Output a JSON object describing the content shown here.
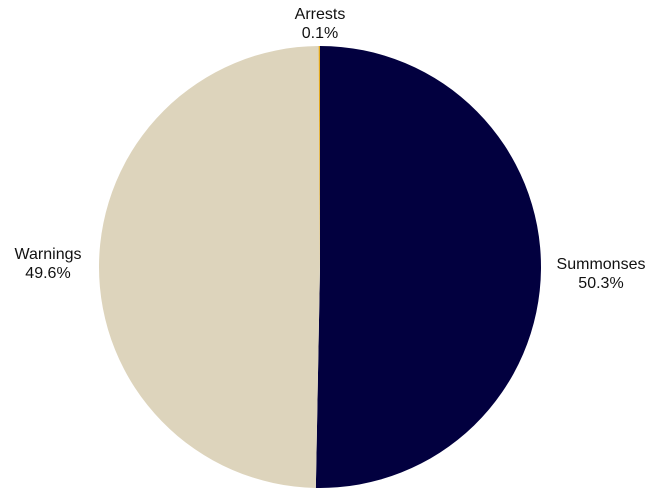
{
  "chart_data": {
    "type": "pie",
    "slices": [
      {
        "label": "Summonses",
        "value": 50.3,
        "display": "50.3%",
        "color": "#02003f"
      },
      {
        "label": "Warnings",
        "value": 49.6,
        "display": "49.6%",
        "color": "#ddd4bc"
      },
      {
        "label": "Arrests",
        "value": 0.1,
        "display": "0.1%",
        "color": "#e3a81c"
      }
    ],
    "start_angle_deg": 0,
    "direction": "clockwise",
    "legend": "none",
    "labels": "outside"
  }
}
